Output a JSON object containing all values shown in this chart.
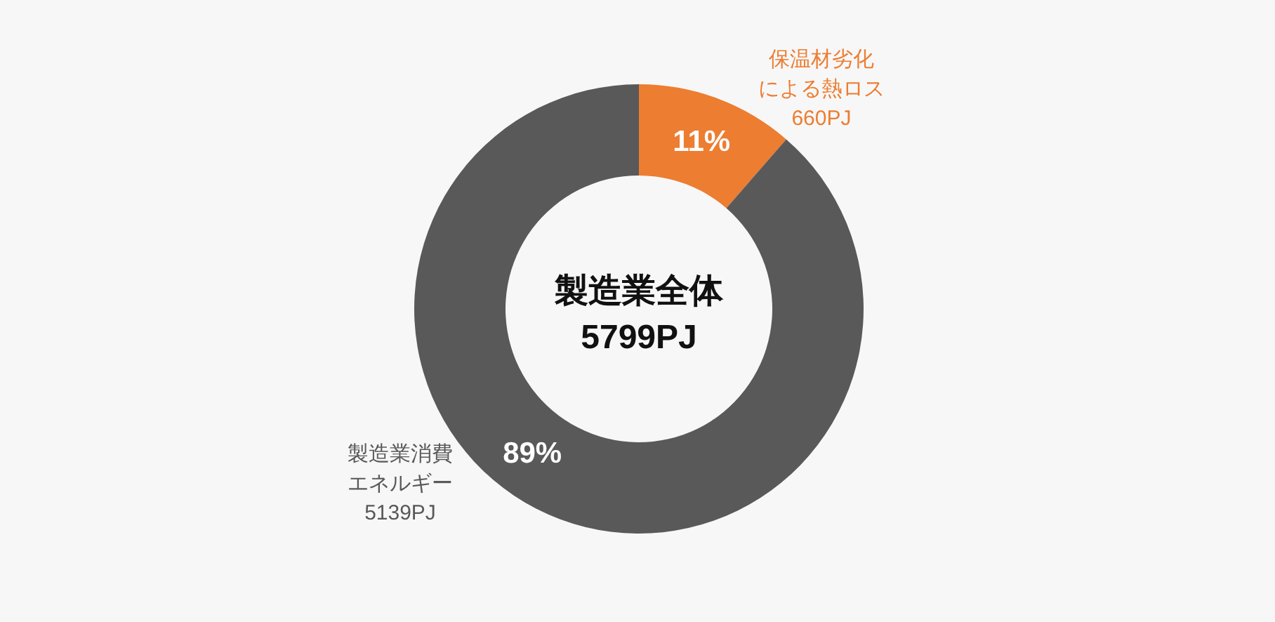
{
  "chart_data": {
    "type": "donut",
    "title": "製造業全体",
    "subtitle": "5799PJ",
    "categories": [
      "保温材劣化による熱ロス",
      "製造業消費エネルギー"
    ],
    "values": [
      660,
      5139
    ],
    "colors": [
      "#ed7d31",
      "#595959"
    ],
    "value_labels": [
      "660PJ",
      "5139PJ"
    ],
    "annotations": [
      {
        "text": "11%",
        "x": "保温材劣化による熱ロス"
      },
      {
        "text": "89%",
        "x": "製造業消費エネルギー"
      }
    ]
  }
}
